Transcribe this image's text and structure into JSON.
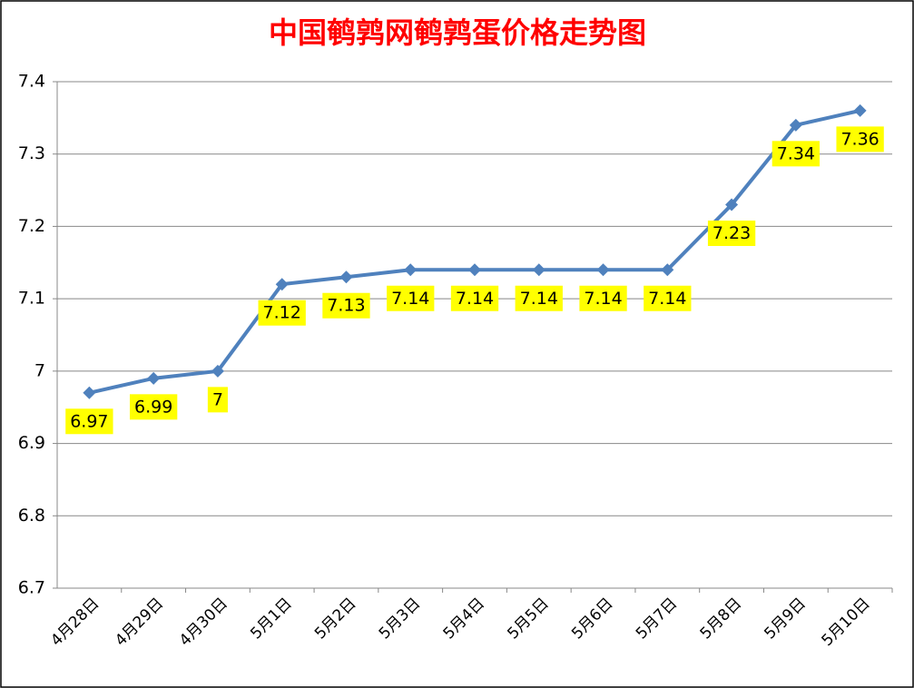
{
  "chart_data": {
    "type": "line",
    "title": "中国鹌鹑网鹌鹑蛋价格走势图",
    "categories": [
      "4月28日",
      "4月29日",
      "4月30日",
      "5月1日",
      "5月2日",
      "5月3日",
      "5月4日",
      "5月5日",
      "5月6日",
      "5月7日",
      "5月8日",
      "5月9日",
      "5月10日"
    ],
    "series": [
      {
        "color": "#4f81bd",
        "values": [
          6.97,
          6.99,
          7,
          7.12,
          7.13,
          7.14,
          7.14,
          7.14,
          7.14,
          7.14,
          7.23,
          7.34,
          7.36
        ]
      }
    ],
    "ylim": [
      6.7,
      7.4
    ],
    "yticks": [
      6.7,
      6.8,
      6.9,
      7,
      7.1,
      7.2,
      7.3,
      7.4
    ],
    "grid": true,
    "label_color": "#ffff00"
  }
}
